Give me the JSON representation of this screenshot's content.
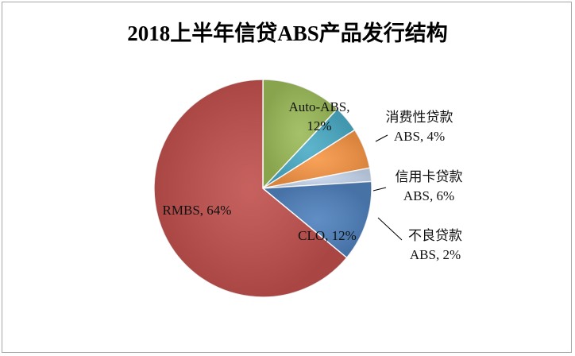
{
  "chart_data": {
    "type": "pie",
    "title": "2018上半年信贷ABS产品发行结构",
    "slices": [
      {
        "name": "Auto-ABS",
        "label_lines": [
          "Auto-ABS,",
          "12%"
        ],
        "value": 12,
        "color": "#9bbb59"
      },
      {
        "name": "消费性贷款ABS",
        "label_lines": [
          "消费性贷款",
          "ABS, 4%"
        ],
        "value": 4,
        "color": "#4bacc6"
      },
      {
        "name": "信用卡贷款ABS",
        "label_lines": [
          "信用卡贷款",
          "ABS, 6%"
        ],
        "value": 6,
        "color": "#f79646"
      },
      {
        "name": "不良贷款ABS",
        "label_lines": [
          "不良贷款",
          "ABS, 2%"
        ],
        "value": 2,
        "color": "#c6d6ee"
      },
      {
        "name": "CLO",
        "label_lines": [
          "CLO, 12%"
        ],
        "value": 12,
        "color": "#4f81bd"
      },
      {
        "name": "RMBS",
        "label_lines": [
          "RMBS, 64%"
        ],
        "value": 64,
        "color": "#c0504d"
      }
    ],
    "start": "12 o'clock, clockwise",
    "legend": "none",
    "leader_lines": [
      "消费性贷款ABS",
      "信用卡贷款ABS",
      "不良贷款ABS"
    ]
  }
}
